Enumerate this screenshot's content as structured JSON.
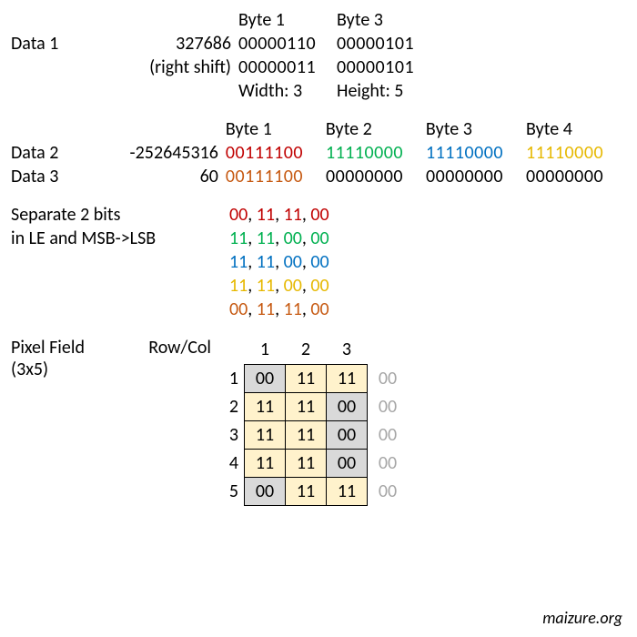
{
  "colors": {
    "red": "#c00000",
    "green": "#00b050",
    "blue": "#0070c0",
    "gold": "#e6b800",
    "brown": "#c65911",
    "grey": "#a6a6a6",
    "cell_empty": "#d9d9d9",
    "cell_fill": "#fff2cc",
    "text": "#000000",
    "background": "#ffffff"
  },
  "font": {
    "family": "Calibri, Arial, sans-serif",
    "size": 20
  },
  "section1": {
    "label_data1": "Data 1",
    "value_data1": "327686",
    "label_shift": "(right shift)",
    "hdr_byte1": "Byte 1",
    "hdr_byte3": "Byte 3",
    "b1_raw": "00000110",
    "b3_raw": "00000101",
    "b1_shift": "00000011",
    "b3_shift": "00000101",
    "width_label": "Width: 3",
    "height_label": "Height: 5"
  },
  "section2": {
    "hdr_byte1": "Byte 1",
    "hdr_byte2": "Byte 2",
    "hdr_byte3": "Byte 3",
    "hdr_byte4": "Byte 4",
    "label_data2": "Data 2",
    "value_data2": "-252645316",
    "d2_b1": "00111100",
    "d2_b2": "11110000",
    "d2_b3": "11110000",
    "d2_b4": "11110000",
    "label_data3": "Data 3",
    "value_data3": "60",
    "d3_b1": "00111100",
    "d3_b2": "00000000",
    "d3_b3": "00000000",
    "d3_b4": "00000000"
  },
  "section3": {
    "label_line1": "Separate 2 bits",
    "label_line2": "in LE and MSB->LSB",
    "rows": [
      {
        "a": "00",
        "b": "11",
        "c": "11",
        "d": "00",
        "color_class": "red"
      },
      {
        "a": "11",
        "b": "11",
        "c": "00",
        "d": "00",
        "color_class": "green"
      },
      {
        "a": "11",
        "b": "11",
        "c": "00",
        "d": "00",
        "color_class": "blue"
      },
      {
        "a": "11",
        "b": "11",
        "c": "00",
        "d": "00",
        "color_class": "gold"
      },
      {
        "a": "00",
        "b": "11",
        "c": "11",
        "d": "00",
        "color_class": "brown"
      }
    ]
  },
  "section4": {
    "label_line1": "Pixel Field",
    "label_line2": "(3x5)",
    "rowcol": "Row/Col",
    "cols": [
      "1",
      "2",
      "3"
    ],
    "rows": [
      {
        "n": "1",
        "cells": [
          "00",
          "11",
          "11"
        ],
        "extra": "00"
      },
      {
        "n": "2",
        "cells": [
          "11",
          "11",
          "00"
        ],
        "extra": "00"
      },
      {
        "n": "3",
        "cells": [
          "11",
          "11",
          "00"
        ],
        "extra": "00"
      },
      {
        "n": "4",
        "cells": [
          "11",
          "11",
          "00"
        ],
        "extra": "00"
      },
      {
        "n": "5",
        "cells": [
          "00",
          "11",
          "11"
        ],
        "extra": "00"
      }
    ]
  },
  "credit": "maizure.org"
}
